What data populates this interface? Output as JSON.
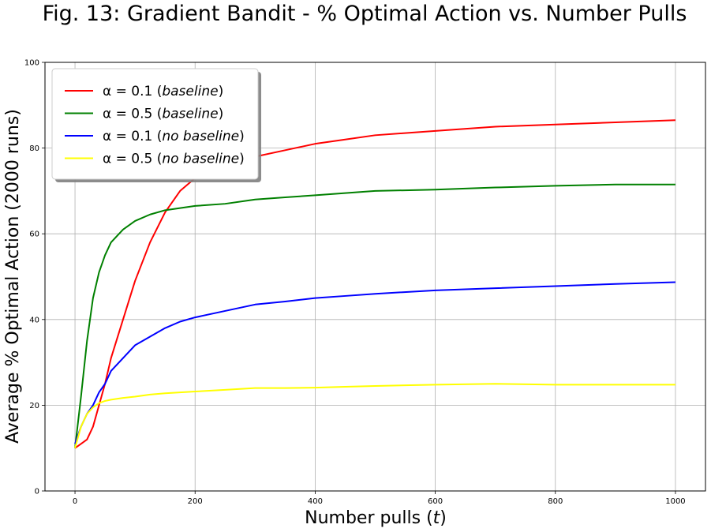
{
  "chart_data": {
    "type": "line",
    "title": "Fig. 13: Gradient Bandit - % Optimal Action vs. Number Pulls",
    "xlabel": "Number pulls (t)",
    "ylabel": "Average % Optimal Action (2000 runs)",
    "xlim": [
      -50,
      1050
    ],
    "ylim": [
      0,
      100
    ],
    "x_ticks": [
      0,
      200,
      400,
      600,
      800,
      1000
    ],
    "y_ticks": [
      0,
      20,
      40,
      60,
      80,
      100
    ],
    "grid": true,
    "legend_position": "top-left",
    "x": [
      0,
      10,
      20,
      30,
      40,
      50,
      60,
      80,
      100,
      125,
      150,
      175,
      200,
      250,
      300,
      350,
      400,
      450,
      500,
      600,
      700,
      800,
      900,
      1000
    ],
    "series": [
      {
        "name": "α = 0.1 (baseline)",
        "label_prefix": "α = 0.1 (",
        "label_italic": "baseline",
        "label_suffix": ")",
        "color": "#ff0000",
        "values": [
          10,
          11,
          12,
          15,
          20,
          25,
          31,
          40,
          49,
          58,
          65,
          70,
          73,
          76,
          78,
          79.5,
          81,
          82,
          83,
          84,
          85,
          85.5,
          86,
          86.5
        ]
      },
      {
        "name": "α = 0.5 (baseline)",
        "label_prefix": "α = 0.5 (",
        "label_italic": "baseline",
        "label_suffix": ")",
        "color": "#008000",
        "values": [
          10,
          22,
          35,
          45,
          51,
          55,
          58,
          61,
          63,
          64.5,
          65.5,
          66,
          66.5,
          67,
          68,
          68.5,
          69,
          69.5,
          70,
          70.3,
          70.8,
          71.2,
          71.5,
          71.5
        ]
      },
      {
        "name": "α = 0.1 (no baseline)",
        "label_prefix": "α = 0.1 (",
        "label_italic": "no baseline",
        "label_suffix": ")",
        "color": "#0000ff",
        "values": [
          11,
          15,
          18,
          20,
          23,
          25,
          28,
          31,
          34,
          36,
          38,
          39.5,
          40.5,
          42,
          43.5,
          44.2,
          45,
          45.5,
          46,
          46.8,
          47.3,
          47.8,
          48.3,
          48.7
        ]
      },
      {
        "name": "α = 0.5 (no baseline)",
        "label_prefix": "α = 0.5 (",
        "label_italic": "no baseline",
        "label_suffix": ")",
        "color": "#ffff00",
        "values": [
          10,
          15,
          18,
          19.5,
          20.5,
          21,
          21.3,
          21.7,
          22,
          22.5,
          22.8,
          23,
          23.2,
          23.6,
          24,
          24,
          24.1,
          24.3,
          24.5,
          24.8,
          25,
          24.8,
          24.8,
          24.8
        ]
      }
    ]
  }
}
